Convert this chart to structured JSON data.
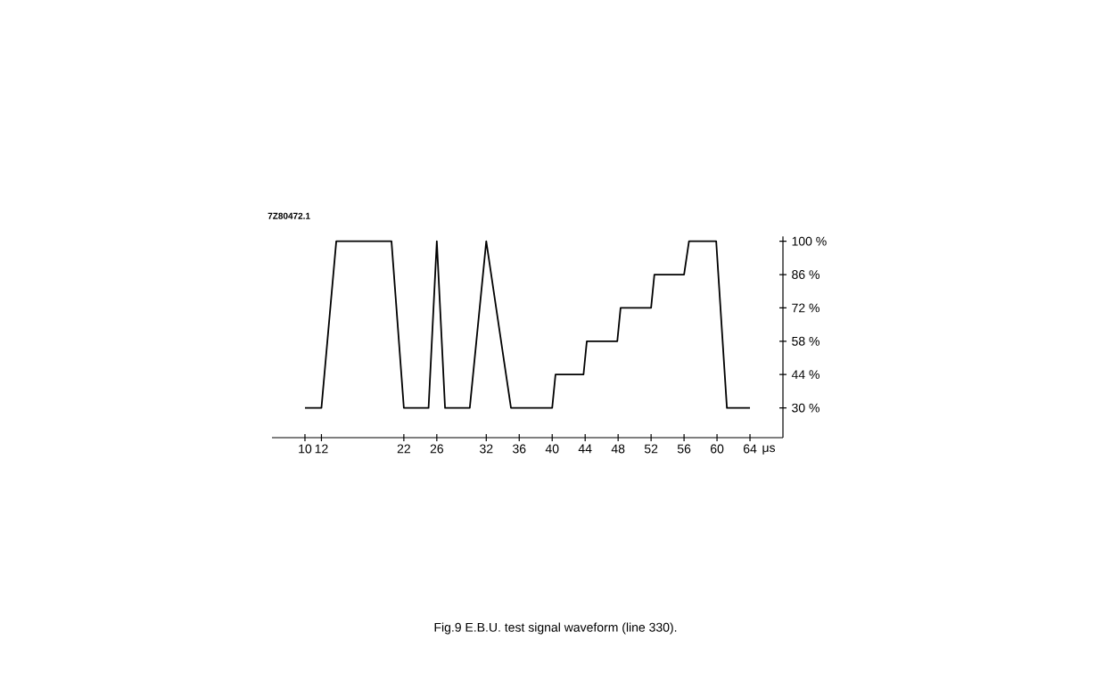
{
  "chart_data": {
    "type": "line",
    "xlabel": "μs",
    "x": [
      10,
      12,
      13.8,
      20.5,
      22,
      25,
      26,
      27,
      30,
      32,
      35,
      40,
      40.4,
      43.8,
      44.2,
      47.9,
      48.3,
      52,
      52.4,
      56,
      56.6,
      59.9,
      61.2,
      64
    ],
    "values": [
      30,
      30,
      100,
      100,
      30,
      30,
      100,
      30,
      30,
      100,
      30,
      30,
      44,
      44,
      58,
      58,
      72,
      72,
      86,
      86,
      100,
      100,
      30,
      30
    ],
    "color": "#000000",
    "marker": "none",
    "line_style": "solid",
    "grid": false,
    "xlim": [
      6,
      68
    ],
    "ylim": [
      17.5,
      102
    ],
    "xticks": [
      10,
      12,
      22,
      26,
      32,
      36,
      40,
      44,
      48,
      52,
      56,
      60,
      64
    ],
    "yticks": [
      {
        "value": 30,
        "label": "30 %"
      },
      {
        "value": 44,
        "label": "44 %"
      },
      {
        "value": 58,
        "label": "58 %"
      },
      {
        "value": 72,
        "label": "72 %"
      },
      {
        "value": 86,
        "label": "86 %"
      },
      {
        "value": 100,
        "label": "100 %"
      }
    ],
    "annotations": [
      "7Z80472.1",
      "Fig.9 E.B.U. test signal waveform (line 330)."
    ]
  }
}
